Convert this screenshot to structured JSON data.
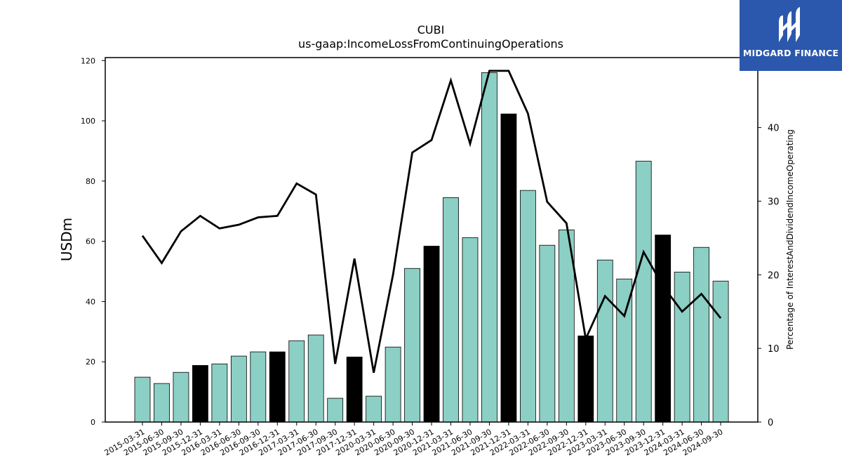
{
  "brand": {
    "name": "MIDGARD FINANCE",
    "bg_color": "#2b58ad"
  },
  "chart_data": {
    "type": "bar",
    "title": "CUBI",
    "subtitle": "us-gaap:IncomeLossFromContinuingOperations",
    "ylabel": "USDm",
    "y2label": "Percentage of InterestAndDividendIncomeOperating",
    "ylim": [
      0,
      121
    ],
    "y2lim": [
      0,
      49.5
    ],
    "yticks": [
      0,
      20,
      40,
      60,
      80,
      100,
      120
    ],
    "y2ticks": [
      0,
      10,
      20,
      30,
      40
    ],
    "grid": false,
    "colors": {
      "bar": "#8ccfc4",
      "bar_highlight": "#000000",
      "line": "#000000"
    },
    "categories": [
      "2015-03-31",
      "2015-06-30",
      "2015-09-30",
      "2015-12-31",
      "2016-03-31",
      "2016-06-30",
      "2016-09-30",
      "2016-12-31",
      "2017-03-31",
      "2017-06-30",
      "2017-09-30",
      "2017-12-31",
      "2020-03-31",
      "2020-06-30",
      "2020-09-30",
      "2020-12-31",
      "2021-03-31",
      "2021-06-30",
      "2021-09-30",
      "2021-12-31",
      "2022-03-31",
      "2022-06-30",
      "2022-09-30",
      "2022-12-31",
      "2023-03-31",
      "2023-06-30",
      "2023-09-30",
      "2023-12-31",
      "2024-03-31",
      "2024-06-30",
      "2024-09-30"
    ],
    "series": [
      {
        "kind": "bar",
        "axis": "left",
        "values": [
          14.9,
          12.8,
          16.5,
          18.8,
          19.3,
          21.9,
          23.3,
          23.3,
          27.0,
          28.9,
          7.9,
          21.6,
          8.6,
          24.9,
          51.0,
          58.4,
          74.5,
          61.2,
          116.0,
          102.3,
          76.9,
          58.7,
          63.8,
          28.6,
          53.8,
          47.5,
          86.6,
          62.1,
          49.8,
          58.0,
          46.8
        ],
        "highlight": [
          false,
          false,
          false,
          true,
          false,
          false,
          false,
          true,
          false,
          false,
          false,
          true,
          false,
          false,
          false,
          true,
          false,
          false,
          false,
          true,
          false,
          false,
          false,
          true,
          false,
          false,
          false,
          true,
          false,
          false,
          false
        ]
      },
      {
        "kind": "line",
        "axis": "right",
        "values": [
          25.3,
          21.6,
          25.9,
          28.0,
          26.3,
          26.8,
          27.8,
          28.0,
          32.4,
          30.9,
          7.9,
          22.2,
          6.7,
          20.0,
          36.6,
          38.3,
          46.4,
          37.8,
          47.7,
          47.7,
          41.9,
          29.9,
          27.0,
          11.3,
          17.1,
          14.4,
          23.1,
          18.5,
          15.0,
          17.4,
          14.1
        ]
      }
    ]
  }
}
